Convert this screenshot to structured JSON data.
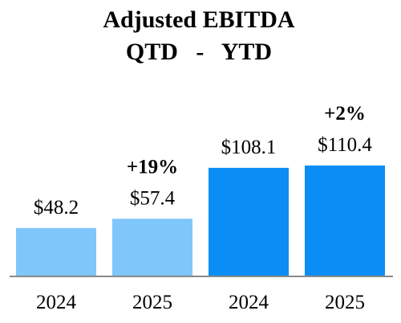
{
  "chart_data": {
    "type": "bar",
    "title": "Adjusted EBITDA",
    "subtitle": "QTD   -   YTD",
    "categories": [
      "2024",
      "2025",
      "2024",
      "2025"
    ],
    "values": [
      48.2,
      57.4,
      108.1,
      110.4
    ],
    "value_labels": [
      "$48.2",
      "$57.4",
      "$108.1",
      "$110.4"
    ],
    "change_labels": [
      "",
      "+19%",
      "",
      "+2%"
    ],
    "bar_colors": [
      "#7fc6fb",
      "#7fc6fb",
      "#0a8ef5",
      "#0a8ef5"
    ],
    "axis_color": "#8a8a8a",
    "ylim": [
      0,
      130
    ],
    "grid": false,
    "xlabel": "",
    "ylabel": ""
  }
}
